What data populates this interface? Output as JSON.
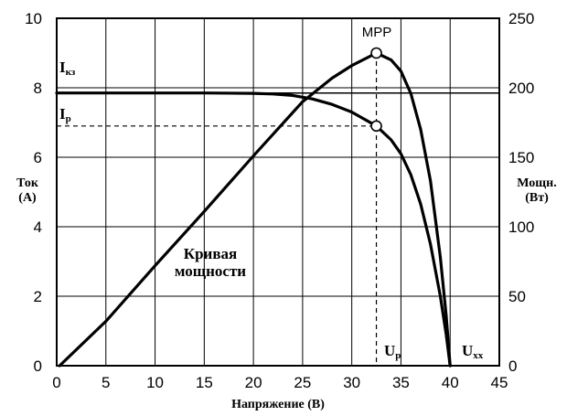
{
  "chart_data": {
    "type": "line",
    "xlabel": "Напряжение (В)",
    "ylabel_left": [
      "Ток",
      "(А)"
    ],
    "ylabel_right": [
      "Мощн.",
      "(Вт)"
    ],
    "xlim": [
      0,
      45
    ],
    "ylim_left": [
      0,
      10
    ],
    "ylim_right": [
      0,
      250
    ],
    "x_ticks": [
      "0",
      "5",
      "10",
      "15",
      "20",
      "25",
      "30",
      "35",
      "40",
      "45"
    ],
    "y_left_ticks": [
      "0",
      "2",
      "4",
      "6",
      "8",
      "10"
    ],
    "y_right_ticks": [
      "0",
      "50",
      "100",
      "150",
      "200",
      "250"
    ],
    "grid": true,
    "series": [
      {
        "axis": "left",
        "points": [
          [
            0,
            7.85
          ],
          [
            5,
            7.85
          ],
          [
            10,
            7.85
          ],
          [
            15,
            7.85
          ],
          [
            20,
            7.84
          ],
          [
            22,
            7.82
          ],
          [
            24,
            7.78
          ],
          [
            26,
            7.68
          ],
          [
            28,
            7.52
          ],
          [
            30,
            7.3
          ],
          [
            32.5,
            6.9
          ],
          [
            34,
            6.5
          ],
          [
            35,
            6.1
          ],
          [
            36,
            5.5
          ],
          [
            37,
            4.65
          ],
          [
            38,
            3.5
          ],
          [
            39,
            2.0
          ],
          [
            39.6,
            0.9
          ],
          [
            40.0,
            0
          ]
        ]
      },
      {
        "axis": "right",
        "points": [
          [
            0.3,
            0
          ],
          [
            5,
            32
          ],
          [
            10,
            72
          ],
          [
            15,
            111
          ],
          [
            20,
            151
          ],
          [
            25,
            190
          ],
          [
            28,
            207
          ],
          [
            30,
            216
          ],
          [
            32.5,
            225
          ],
          [
            34,
            220
          ],
          [
            35,
            212
          ],
          [
            36,
            196
          ],
          [
            37,
            170
          ],
          [
            38,
            133
          ],
          [
            39,
            78
          ],
          [
            39.6,
            36
          ],
          [
            40.0,
            0
          ]
        ]
      }
    ],
    "annotations": {
      "isc": {
        "text": "I",
        "sub": "кз",
        "y": 7.85
      },
      "ip": {
        "text": "I",
        "sub": "р",
        "y": 6.9
      },
      "up": {
        "text": "U",
        "sub": "р",
        "x": 32.5
      },
      "uxx": {
        "text": "U",
        "sub": "хх",
        "x": 40.0
      },
      "mpp": {
        "text": "MPP",
        "x": 32.5,
        "power": 225
      },
      "power_curve_label": [
        "Кривая",
        "мощности"
      ]
    },
    "markers": [
      {
        "axis": "right",
        "x": 32.5,
        "y": 225
      },
      {
        "axis": "left",
        "x": 32.5,
        "y": 6.9
      }
    ]
  }
}
